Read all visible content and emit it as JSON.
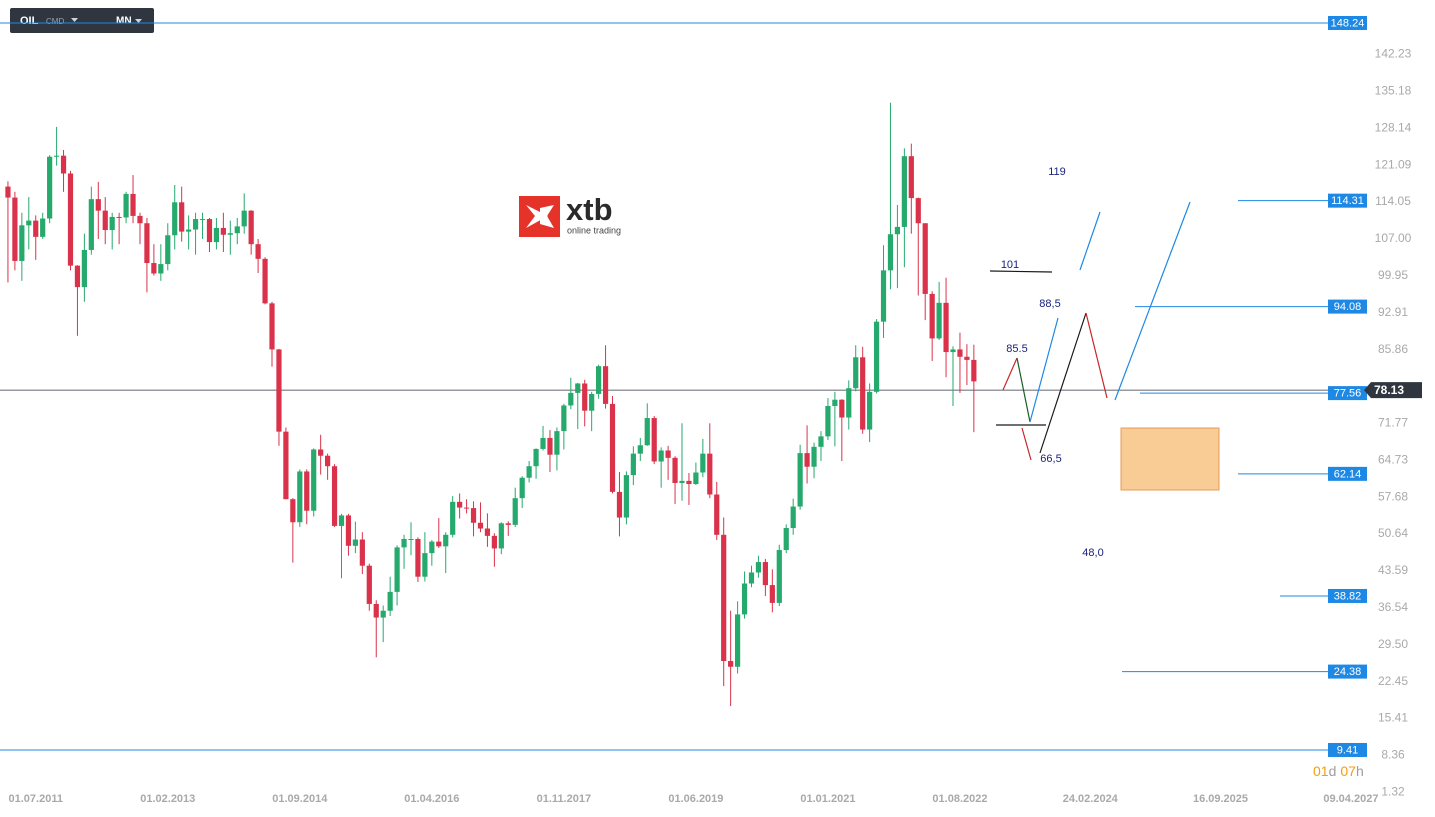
{
  "toolbar": {
    "symbol": "OIL",
    "kind": "CMD",
    "interval": "MN"
  },
  "logo": {
    "brand": "xtb",
    "tagline": "online trading"
  },
  "countdown": {
    "days": "01",
    "day_unit": "d",
    "hours": "07",
    "hour_unit": "h"
  },
  "chart_data": {
    "type": "candlestick",
    "up_color": "#26a96c",
    "down_color": "#d9324a",
    "level_color": "#1e88e5",
    "xlim": [
      "01.02.2011",
      "01.06.2027"
    ],
    "ylim": [
      -1.67,
      152.63
    ],
    "xticks": [
      "01.07.2011",
      "01.02.2013",
      "01.09.2014",
      "01.04.2016",
      "01.11.2017",
      "01.06.2019",
      "01.01.2021",
      "01.08.2022",
      "24.02.2024",
      "16.09.2025",
      "09.04.2027"
    ],
    "yticks": [
      142.23,
      135.18,
      128.14,
      121.09,
      114.05,
      {
        "value": 107,
        "label": "107.00"
      },
      99.95,
      92.91,
      85.86,
      71.77,
      64.73,
      57.68,
      50.64,
      43.59,
      36.54,
      {
        "value": 29.5,
        "label": "29.50"
      },
      22.45,
      15.41,
      8.36,
      1.32
    ],
    "current_price": 78.13,
    "levels": [
      148.24,
      114.31,
      94.08,
      77.56,
      62.14,
      38.82,
      24.38,
      9.41
    ],
    "annotations": [
      "119",
      "101",
      "88,5",
      "85.5",
      "66,5",
      "48,0"
    ],
    "x": [
      "01.03.2011",
      "01.04.2011",
      "01.05.2011",
      "01.06.2011",
      "01.07.2011",
      "01.08.2011",
      "01.09.2011",
      "01.10.2011",
      "01.11.2011",
      "01.12.2011",
      "01.01.2012",
      "01.02.2012",
      "01.03.2012",
      "01.04.2012",
      "01.05.2012",
      "01.06.2012",
      "01.07.2012",
      "01.08.2012",
      "01.09.2012",
      "01.10.2012",
      "01.11.2012",
      "01.12.2012",
      "01.01.2013",
      "01.02.2013",
      "01.03.2013",
      "01.04.2013",
      "01.05.2013",
      "01.06.2013",
      "01.07.2013",
      "01.08.2013",
      "01.09.2013",
      "01.10.2013",
      "01.11.2013",
      "01.12.2013",
      "01.01.2014",
      "01.02.2014",
      "01.03.2014",
      "01.04.2014",
      "01.05.2014",
      "01.06.2014",
      "01.07.2014",
      "01.08.2014",
      "01.09.2014",
      "01.10.2014",
      "01.11.2014",
      "01.12.2014",
      "01.01.2015",
      "01.02.2015",
      "01.03.2015",
      "01.04.2015",
      "01.05.2015",
      "01.06.2015",
      "01.07.2015",
      "01.08.2015",
      "01.09.2015",
      "01.10.2015",
      "01.11.2015",
      "01.12.2015",
      "01.01.2016",
      "01.02.2016",
      "01.03.2016",
      "01.04.2016",
      "01.05.2016",
      "01.06.2016",
      "01.07.2016",
      "01.08.2016",
      "01.09.2016",
      "01.10.2016",
      "01.11.2016",
      "01.12.2016",
      "01.01.2017",
      "01.02.2017",
      "01.03.2017",
      "01.04.2017",
      "01.05.2017",
      "01.06.2017",
      "01.07.2017",
      "01.08.2017",
      "01.09.2017",
      "01.10.2017",
      "01.11.2017",
      "01.12.2017",
      "01.01.2018",
      "01.02.2018",
      "01.03.2018",
      "01.04.2018",
      "01.05.2018",
      "01.06.2018",
      "01.07.2018",
      "01.08.2018",
      "01.09.2018",
      "01.10.2018",
      "01.11.2018",
      "01.12.2018",
      "01.01.2019",
      "01.02.2019",
      "01.03.2019",
      "01.04.2019",
      "01.05.2019",
      "01.06.2019",
      "01.07.2019",
      "01.08.2019",
      "01.09.2019",
      "01.10.2019",
      "01.11.2019",
      "01.12.2019",
      "01.01.2020",
      "01.02.2020",
      "01.03.2020",
      "01.04.2020",
      "01.05.2020",
      "01.06.2020",
      "01.07.2020",
      "01.08.2020",
      "01.09.2020",
      "01.10.2020",
      "01.11.2020",
      "01.12.2020",
      "01.01.2021",
      "01.02.2021",
      "01.03.2021",
      "01.04.2021",
      "01.05.2021",
      "01.06.2021",
      "01.07.2021",
      "01.08.2021",
      "01.09.2021",
      "01.10.2021",
      "01.11.2021",
      "01.12.2021",
      "01.01.2022",
      "01.02.2022",
      "01.03.2022",
      "01.04.2022",
      "01.05.2022",
      "01.06.2022",
      "01.07.2022",
      "01.08.2022",
      "01.09.2022",
      "01.10.2022"
    ],
    "candles": [
      [
        117,
        118,
        98.7,
        114.9
      ],
      [
        114.9,
        116,
        101,
        102.8
      ],
      [
        102.8,
        112,
        99,
        109.6
      ],
      [
        109.6,
        115,
        105,
        110.5
      ],
      [
        110.5,
        111.5,
        103,
        107.4
      ],
      [
        107.4,
        112,
        107,
        110.9
      ],
      [
        110.9,
        123,
        110,
        122.7
      ],
      [
        122.7,
        128.4,
        121,
        122.9
      ],
      [
        122.9,
        124,
        116,
        119.5
      ],
      [
        119.5,
        120,
        101,
        101.9
      ],
      [
        101.9,
        102,
        88.5,
        97.8
      ],
      [
        97.8,
        108,
        95,
        104.9
      ],
      [
        104.9,
        117,
        104,
        114.6
      ],
      [
        114.6,
        117.9,
        107,
        112.4
      ],
      [
        112.4,
        115,
        106,
        108.7
      ],
      [
        108.7,
        112,
        105,
        111.2
      ],
      [
        111.2,
        112,
        106,
        111.1
      ],
      [
        111.1,
        116,
        110,
        115.6
      ],
      [
        115.6,
        119.2,
        110,
        111.4
      ],
      [
        111.4,
        112,
        106,
        110
      ],
      [
        110,
        111,
        96.8,
        102.4
      ],
      [
        102.4,
        106,
        100,
        100.4
      ],
      [
        100.4,
        106,
        99,
        102.2
      ],
      [
        102.2,
        110,
        101,
        107.7
      ],
      [
        107.7,
        117.3,
        105,
        114
      ],
      [
        114,
        117,
        106.5,
        108.4
      ],
      [
        108.4,
        111.5,
        105,
        108.8
      ],
      [
        108.8,
        112,
        104,
        110.8
      ],
      [
        110.8,
        112,
        107,
        110.8
      ],
      [
        110.8,
        111,
        104.5,
        106.4
      ],
      [
        106.4,
        111,
        105,
        109.1
      ],
      [
        109.1,
        112,
        104.5,
        107.8
      ],
      [
        107.8,
        110.5,
        104,
        108.1
      ],
      [
        108.1,
        111,
        106,
        109.4
      ],
      [
        109.4,
        115.7,
        108,
        112.4
      ],
      [
        112.4,
        112.5,
        104,
        106
      ],
      [
        106,
        107,
        100.5,
        103.2
      ],
      [
        103.2,
        103.5,
        94.5,
        94.7
      ],
      [
        94.7,
        95,
        82.6,
        85.9
      ],
      [
        85.9,
        86,
        67.5,
        70.2
      ],
      [
        70.2,
        71,
        57.3,
        57.3
      ],
      [
        57.3,
        57.5,
        45.2,
        52.9
      ],
      [
        52.9,
        63,
        52,
        62.6
      ],
      [
        62.6,
        63,
        52.5,
        55.1
      ],
      [
        55.1,
        67,
        54,
        66.8
      ],
      [
        66.8,
        69.6,
        62,
        65.6
      ],
      [
        65.6,
        66,
        61,
        63.6
      ],
      [
        63.6,
        64,
        52,
        52.2
      ],
      [
        52.2,
        54.5,
        42.2,
        54.2
      ],
      [
        54.2,
        54.5,
        46.5,
        48.4
      ],
      [
        48.4,
        53,
        47,
        49.6
      ],
      [
        49.6,
        51,
        43,
        44.6
      ],
      [
        44.6,
        45,
        36,
        37.3
      ],
      [
        37.3,
        38,
        27.1,
        34.7
      ],
      [
        34.7,
        37,
        30,
        36
      ],
      [
        36,
        42.5,
        35,
        39.6
      ],
      [
        39.6,
        48.5,
        37,
        48.1
      ],
      [
        48.1,
        50.5,
        44,
        49.7
      ],
      [
        49.7,
        52.9,
        46.6,
        49.7
      ],
      [
        49.7,
        50,
        41.5,
        42.5
      ],
      [
        42.5,
        51,
        41.6,
        47
      ],
      [
        47,
        49.5,
        44.6,
        49.2
      ],
      [
        49.2,
        53.7,
        48,
        48.3
      ],
      [
        48.3,
        51,
        43.2,
        50.5
      ],
      [
        50.5,
        57.9,
        50,
        56.8
      ],
      [
        56.8,
        58.4,
        53.6,
        55.7
      ],
      [
        55.7,
        57.3,
        54.6,
        55.6
      ],
      [
        55.6,
        56.9,
        50.2,
        52.8
      ],
      [
        52.8,
        56.7,
        51,
        51.7
      ],
      [
        51.7,
        54.6,
        48.2,
        50.3
      ],
      [
        50.3,
        50.8,
        44.4,
        47.9
      ],
      [
        47.9,
        52.9,
        46.8,
        52.7
      ],
      [
        52.7,
        53.1,
        50.3,
        52.4
      ],
      [
        52.4,
        59.5,
        52,
        57.5
      ],
      [
        57.5,
        61.7,
        55.6,
        61.4
      ],
      [
        61.4,
        64.6,
        60.5,
        63.6
      ],
      [
        63.6,
        67,
        61.2,
        66.9
      ],
      [
        66.9,
        71.3,
        66.6,
        69
      ],
      [
        69,
        70.5,
        62.5,
        65.8
      ],
      [
        65.8,
        71,
        62.8,
        70.3
      ],
      [
        70.3,
        75.5,
        66.8,
        75.2
      ],
      [
        75.2,
        80.5,
        74.5,
        77.6
      ],
      [
        77.6,
        79.5,
        70.7,
        79.4
      ],
      [
        79.4,
        80.1,
        71.2,
        74.2
      ],
      [
        74.2,
        77.8,
        70.3,
        77.4
      ],
      [
        77.4,
        83,
        76.5,
        82.7
      ],
      [
        82.7,
        86.7,
        74.6,
        75.5
      ],
      [
        75.5,
        77,
        58.4,
        58.7
      ],
      [
        58.7,
        62.5,
        50.2,
        53.8
      ],
      [
        53.8,
        62.6,
        52.5,
        61.9
      ],
      [
        61.9,
        67.4,
        60,
        66
      ],
      [
        66,
        69,
        64.6,
        67.6
      ],
      [
        67.6,
        75.6,
        67.5,
        72.8
      ],
      [
        72.8,
        73.2,
        64,
        64.5
      ],
      [
        64.5,
        67.2,
        59.5,
        66.6
      ],
      [
        66.6,
        67.5,
        61,
        65.2
      ],
      [
        65.2,
        65.5,
        56.4,
        60.4
      ],
      [
        60.4,
        71.8,
        57,
        60.8
      ],
      [
        60.8,
        62.3,
        56.2,
        60.2
      ],
      [
        60.2,
        64.3,
        60,
        62.4
      ],
      [
        62.4,
        68.8,
        61.5,
        66
      ],
      [
        66,
        71.8,
        57.5,
        58.2
      ],
      [
        58.2,
        60.6,
        49.5,
        50.5
      ],
      [
        50.5,
        53.8,
        21.6,
        26.4
      ],
      [
        26.4,
        36,
        17.8,
        25.3
      ],
      [
        25.3,
        37.8,
        24,
        35.3
      ],
      [
        35.3,
        43.5,
        34.5,
        41.2
      ],
      [
        41.2,
        44.6,
        40.5,
        43.3
      ],
      [
        43.3,
        46.5,
        42.3,
        45.3
      ],
      [
        45.3,
        45.9,
        38.8,
        40.9
      ],
      [
        40.9,
        43.9,
        35.7,
        37.5
      ],
      [
        37.5,
        48.6,
        36.9,
        47.6
      ],
      [
        47.6,
        52.5,
        47,
        51.8
      ],
      [
        51.8,
        57.4,
        50.5,
        55.9
      ],
      [
        55.9,
        67.7,
        55.3,
        66.1
      ],
      [
        66.1,
        71.4,
        60.3,
        63.5
      ],
      [
        63.5,
        68.1,
        61.3,
        67.3
      ],
      [
        67.3,
        70.3,
        64.6,
        69.3
      ],
      [
        69.3,
        76.6,
        68.6,
        75.1
      ],
      [
        75.1,
        77.8,
        67.4,
        76.3
      ],
      [
        76.3,
        76.4,
        64.6,
        72.9
      ],
      [
        72.9,
        80,
        70.6,
        78.5
      ],
      [
        78.5,
        86.7,
        77.9,
        84.4
      ],
      [
        84.4,
        86.4,
        69.8,
        70.6
      ],
      [
        70.6,
        79.4,
        68.2,
        77.8
      ],
      [
        77.8,
        91.7,
        77.5,
        91.2
      ],
      [
        91.2,
        105.8,
        88.1,
        101
      ],
      [
        101,
        133,
        97.4,
        107.9
      ],
      [
        107.9,
        113.5,
        97.6,
        109.3
      ],
      [
        109.3,
        124.3,
        101.6,
        122.8
      ],
      [
        122.8,
        125.2,
        108,
        114.8
      ],
      [
        114.8,
        114.9,
        96.2,
        110
      ],
      [
        110,
        110,
        91.5,
        96.5
      ],
      [
        96.5,
        97,
        83.7,
        88
      ],
      [
        88,
        98.8,
        87.7,
        94.8
      ],
      [
        94.8,
        99.6,
        80.6,
        85.4
      ],
      [
        85.4,
        86.5,
        75.1,
        85.9
      ],
      [
        85.9,
        89.1,
        77.6,
        84.5
      ],
      [
        84.5,
        86.9,
        79.1,
        83.9
      ],
      [
        83.9,
        86.8,
        70.1,
        79.8
      ]
    ]
  }
}
